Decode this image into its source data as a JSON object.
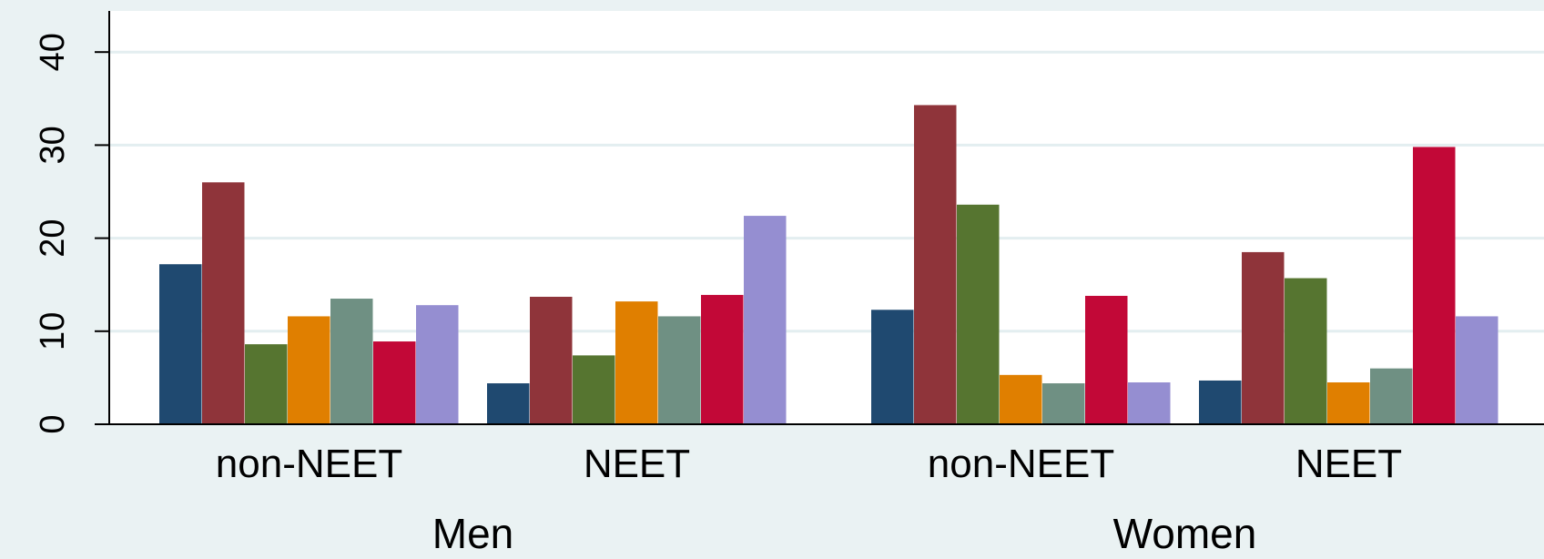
{
  "chart_data": {
    "type": "bar",
    "title": "",
    "xlabel": "",
    "ylabel": "",
    "ylim": [
      0,
      44
    ],
    "yticks": [
      0,
      10,
      20,
      30,
      40
    ],
    "grid": true,
    "legend": "none",
    "colors": [
      "#1f4970",
      "#8f343a",
      "#567530",
      "#e07f00",
      "#6f9083",
      "#c20837",
      "#958ed1"
    ],
    "groups": [
      {
        "label": "Men",
        "subgroups": [
          {
            "label": "non-NEET",
            "values": [
              17.2,
              26.0,
              8.6,
              11.6,
              13.5,
              8.9,
              12.8
            ]
          },
          {
            "label": "NEET",
            "values": [
              4.4,
              13.7,
              7.4,
              13.2,
              11.6,
              13.9,
              22.4
            ]
          }
        ]
      },
      {
        "label": "Women",
        "subgroups": [
          {
            "label": "non-NEET",
            "values": [
              12.3,
              34.3,
              23.6,
              5.3,
              4.4,
              13.8,
              4.5
            ]
          },
          {
            "label": "NEET",
            "values": [
              4.7,
              18.5,
              15.7,
              4.5,
              6.0,
              29.8,
              11.6
            ]
          }
        ]
      }
    ]
  }
}
